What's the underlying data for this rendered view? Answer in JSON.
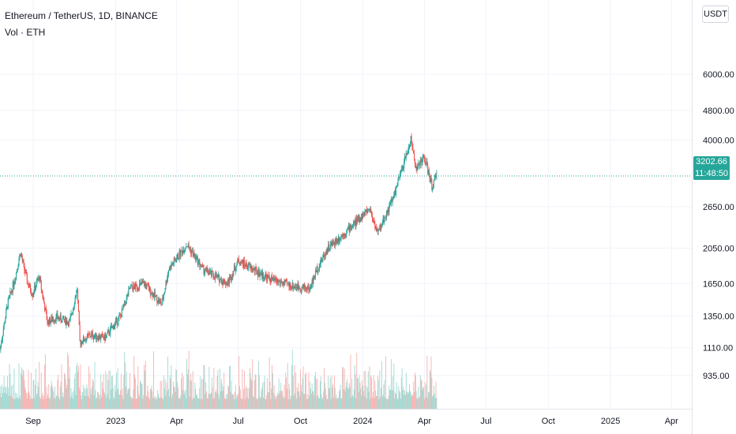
{
  "legend": {
    "title": "Ethereum / TetherUS, 1D, BINANCE",
    "volume_label": "Vol · ETH"
  },
  "currency_button": "USDT",
  "last_price_label": "3202.66",
  "countdown_label": "11:48:50",
  "colors": {
    "up": "#26a69a",
    "down": "#ef5350",
    "grid": "#f0f3fa",
    "price_line": "#26a69a",
    "text": "#131722"
  },
  "chart_data": {
    "type": "candlestick",
    "title": "Ethereum / TetherUS, 1D, BINANCE",
    "y_scale": "log",
    "ylim": [
      770,
      7300
    ],
    "y_ticks": [
      6000,
      4800,
      4000,
      3202.66,
      2650,
      2050,
      1650,
      1350,
      1110,
      935
    ],
    "y_tick_labels": [
      "6000.00",
      "4800.00",
      "4000.00",
      "3202.66",
      "2650.00",
      "2050.00",
      "1650.00",
      "1350.00",
      "1110.00",
      "935.00"
    ],
    "x_ticks": [
      "2022-09-01",
      "2023-01-01",
      "2023-04-01",
      "2023-07-01",
      "2023-10-01",
      "2024-01-01",
      "2024-04-01",
      "2024-07-01",
      "2024-10-01",
      "2025-01-01",
      "2025-04-01"
    ],
    "x_tick_labels": [
      "Sep",
      "2023",
      "Apr",
      "Jul",
      "Oct",
      "2024",
      "Apr",
      "Jul",
      "Oct",
      "2025",
      "Apr"
    ],
    "x_range": [
      "2022-07-14",
      "2025-05-01"
    ],
    "last_price": 3202.66,
    "grid": true,
    "price_path": [
      [
        "2022-07-14",
        1100
      ],
      [
        "2022-07-25",
        1450
      ],
      [
        "2022-08-05",
        1700
      ],
      [
        "2022-08-13",
        2000
      ],
      [
        "2022-08-24",
        1650
      ],
      [
        "2022-08-31",
        1550
      ],
      [
        "2022-09-10",
        1720
      ],
      [
        "2022-09-22",
        1300
      ],
      [
        "2022-10-05",
        1340
      ],
      [
        "2022-10-25",
        1300
      ],
      [
        "2022-11-05",
        1600
      ],
      [
        "2022-11-09",
        1150
      ],
      [
        "2022-11-25",
        1200
      ],
      [
        "2022-12-16",
        1180
      ],
      [
        "2023-01-08",
        1350
      ],
      [
        "2023-01-22",
        1600
      ],
      [
        "2023-02-12",
        1650
      ],
      [
        "2023-03-10",
        1450
      ],
      [
        "2023-03-20",
        1800
      ],
      [
        "2023-04-16",
        2100
      ],
      [
        "2023-05-10",
        1800
      ],
      [
        "2023-06-15",
        1650
      ],
      [
        "2023-07-01",
        1900
      ],
      [
        "2023-08-15",
        1700
      ],
      [
        "2023-09-15",
        1630
      ],
      [
        "2023-10-15",
        1600
      ],
      [
        "2023-10-25",
        1800
      ],
      [
        "2023-11-10",
        2050
      ],
      [
        "2023-12-10",
        2300
      ],
      [
        "2024-01-11",
        2620
      ],
      [
        "2024-01-23",
        2250
      ],
      [
        "2024-02-15",
        2800
      ],
      [
        "2024-03-12",
        4000
      ],
      [
        "2024-03-20",
        3350
      ],
      [
        "2024-04-01",
        3600
      ],
      [
        "2024-04-12",
        3000
      ],
      [
        "2024-04-19",
        3202.66
      ]
    ],
    "volume": {
      "label": "Vol · ETH",
      "relative_level_range": [
        0.15,
        1.0
      ]
    }
  }
}
